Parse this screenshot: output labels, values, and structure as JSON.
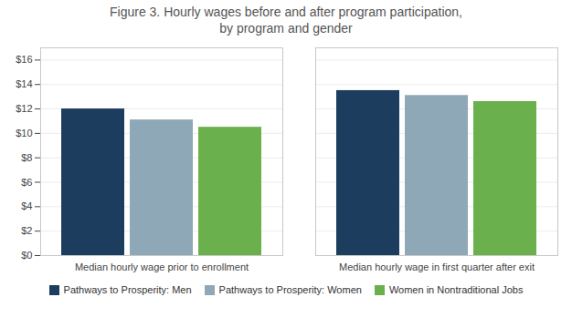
{
  "chart_data": {
    "type": "bar",
    "title": "Figure 3. Hourly wages before and after program participation,",
    "subtitle": "by program and gender",
    "categories": [
      "Median hourly wage prior to enrollment",
      "Median hourly wage in first quarter after exit"
    ],
    "series": [
      {
        "name": "Pathways to Prosperity: Men",
        "color": "#1c3d5e",
        "values": [
          12.0,
          13.5
        ]
      },
      {
        "name": "Pathways to Prosperity: Women",
        "color": "#8fa8b8",
        "values": [
          11.1,
          13.1
        ]
      },
      {
        "name": "Women in Nontraditional Jobs",
        "color": "#6ab04c",
        "values": [
          10.5,
          12.6
        ]
      }
    ],
    "ylim": [
      0,
      17
    ],
    "yticks": [
      {
        "value": 0,
        "label": "$0"
      },
      {
        "value": 2,
        "label": "$2"
      },
      {
        "value": 4,
        "label": "$4"
      },
      {
        "value": 6,
        "label": "$6"
      },
      {
        "value": 8,
        "label": "$8"
      },
      {
        "value": 10,
        "label": "$10"
      },
      {
        "value": 12,
        "label": "$12"
      },
      {
        "value": 14,
        "label": "$14"
      },
      {
        "value": 16,
        "label": "$16"
      }
    ],
    "grid": true,
    "legend": "bottom"
  }
}
